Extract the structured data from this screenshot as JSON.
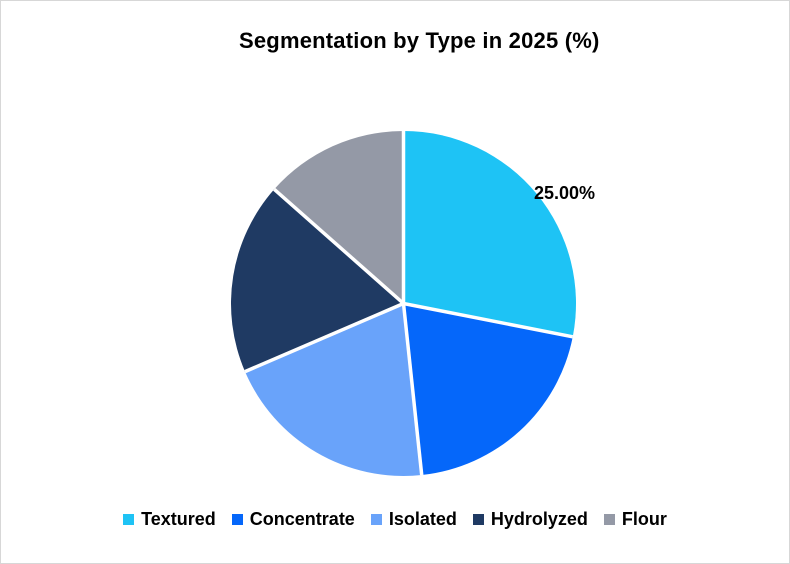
{
  "frame": {
    "background_color": "#FFFFFF",
    "border_color": "#D7D7D7"
  },
  "chart_data": {
    "type": "pie",
    "title": "Segmentation by Type in 2025 (%)",
    "categories": [
      "Textured",
      "Concentrate",
      "Isolated",
      "Hydrolyzed",
      "Flour"
    ],
    "values": [
      25,
      18,
      18,
      16,
      12
    ],
    "unit": "%",
    "colors": [
      "#1EC3F5",
      "#0567FA",
      "#69A3FA",
      "#1F3A63",
      "#9499A6"
    ],
    "data_label": {
      "category": "Textured",
      "text": "25.00%"
    },
    "legend_position": "bottom",
    "start_angle_deg": 0,
    "direction": "clockwise-from-top",
    "slice_gap_color": "#FFFFFF"
  }
}
